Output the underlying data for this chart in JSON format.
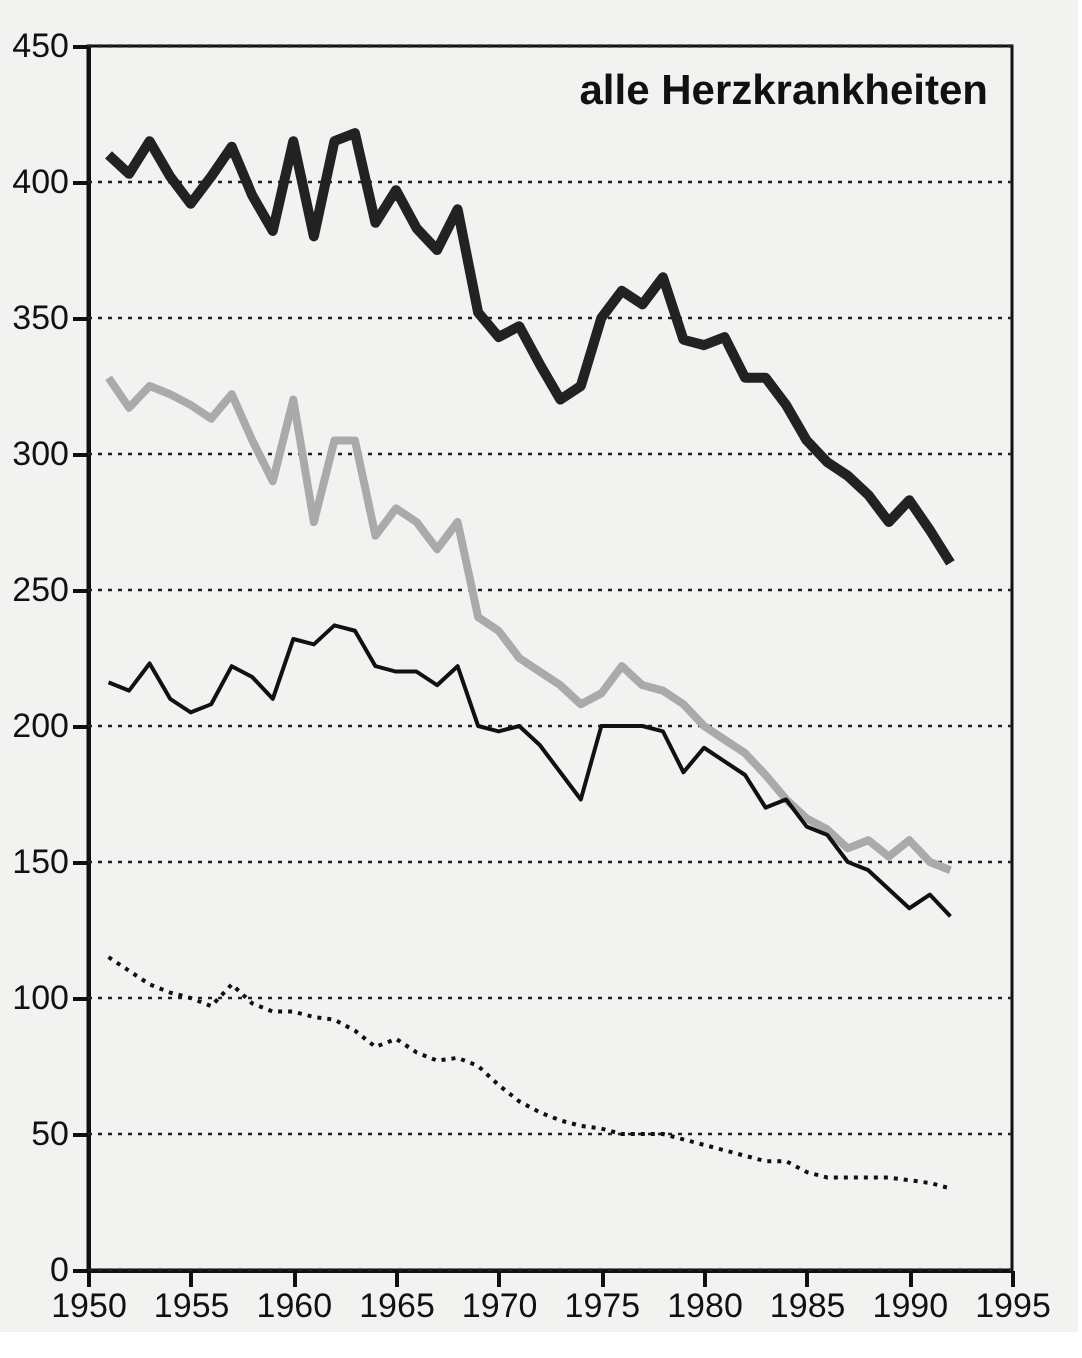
{
  "chart_data": {
    "type": "line",
    "title": "alle Herzkrankheiten",
    "x": [
      1951,
      1952,
      1953,
      1954,
      1955,
      1956,
      1957,
      1958,
      1959,
      1960,
      1961,
      1962,
      1963,
      1964,
      1965,
      1966,
      1967,
      1968,
      1969,
      1970,
      1971,
      1972,
      1973,
      1974,
      1975,
      1976,
      1977,
      1978,
      1979,
      1980,
      1981,
      1982,
      1983,
      1984,
      1985,
      1986,
      1987,
      1988,
      1989,
      1990,
      1991,
      1992
    ],
    "series": [
      {
        "color": "#222222",
        "line_style": "solid",
        "values": [
          410,
          403,
          415,
          402,
          392,
          402,
          413,
          395,
          382,
          415,
          380,
          415,
          418,
          385,
          397,
          383,
          375,
          390,
          352,
          343,
          347,
          333,
          320,
          325,
          350,
          360,
          355,
          365,
          342,
          340,
          343,
          328,
          328,
          318,
          305,
          297,
          292,
          285,
          275,
          283,
          272,
          260
        ]
      },
      {
        "color": "#aaaaaa",
        "line_style": "solid",
        "values": [
          328,
          317,
          325,
          322,
          318,
          313,
          322,
          305,
          290,
          320,
          275,
          305,
          305,
          270,
          280,
          275,
          265,
          275,
          240,
          235,
          225,
          220,
          215,
          208,
          212,
          222,
          215,
          213,
          208,
          200,
          195,
          190,
          182,
          173,
          166,
          162,
          155,
          158,
          152,
          158,
          150,
          147
        ]
      },
      {
        "color": "#111111",
        "line_style": "solid",
        "values": [
          216,
          213,
          223,
          210,
          205,
          208,
          222,
          218,
          210,
          232,
          230,
          237,
          235,
          222,
          220,
          220,
          215,
          222,
          200,
          198,
          200,
          193,
          183,
          173,
          200,
          200,
          200,
          198,
          183,
          192,
          187,
          182,
          170,
          173,
          163,
          160,
          150,
          147,
          140,
          133,
          138,
          130
        ]
      },
      {
        "color": "#111111",
        "line_style": "dotted",
        "values": [
          115,
          110,
          105,
          102,
          100,
          97,
          105,
          98,
          95,
          95,
          93,
          92,
          88,
          82,
          85,
          80,
          77,
          78,
          75,
          68,
          62,
          58,
          55,
          53,
          52,
          50,
          50,
          50,
          48,
          46,
          44,
          42,
          40,
          40,
          36,
          34,
          34,
          34,
          34,
          33,
          32,
          30
        ]
      }
    ],
    "xlim": [
      1950,
      1995
    ],
    "xticks": [
      1950,
      1955,
      1960,
      1965,
      1970,
      1975,
      1980,
      1985,
      1990,
      1995
    ],
    "ylim": [
      0,
      450
    ],
    "yticks": [
      0,
      50,
      100,
      150,
      200,
      250,
      300,
      350,
      400,
      450
    ],
    "grid": "y"
  }
}
